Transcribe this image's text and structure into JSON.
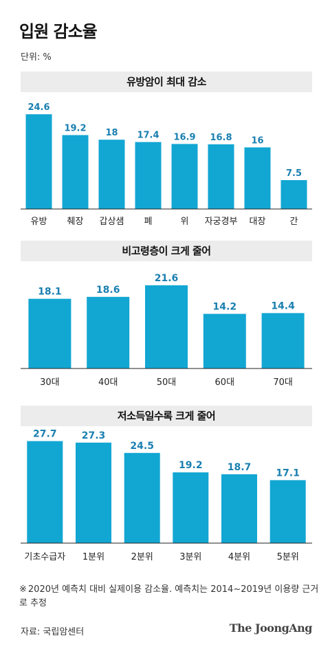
{
  "title": "입원 감소율",
  "unit_label": "단위: %",
  "colors": {
    "bar": "#12a6d3",
    "value_text": "#1a7fb0",
    "band": "#ececec",
    "axis": "#222222"
  },
  "footnote": {
    "mark": "※",
    "text": "2020년 예측치 대비 실제이용 감소율. 예측치는 2014~2019년 이용량 근거로 추정"
  },
  "source": "자료: 국립암센터",
  "brand": "The JoongAng",
  "chart_data": [
    {
      "type": "bar",
      "title": "유방암이 최대 감소",
      "categories": [
        "유방",
        "췌장",
        "갑상샘",
        "폐",
        "위",
        "자궁경부",
        "대장",
        "간"
      ],
      "values": [
        24.6,
        19.2,
        18,
        17.4,
        16.9,
        16.8,
        16,
        7.5
      ],
      "labels": [
        "24.6",
        "19.2",
        "18",
        "17.4",
        "16.9",
        "16.8",
        "16",
        "7.5"
      ],
      "ylim": [
        0,
        25
      ]
    },
    {
      "type": "bar",
      "title": "비고령층이 크게 줄어",
      "categories": [
        "30대",
        "40대",
        "50대",
        "60대",
        "70대"
      ],
      "values": [
        18.1,
        18.6,
        21.6,
        14.2,
        14.4
      ],
      "labels": [
        "18.1",
        "18.6",
        "21.6",
        "14.2",
        "14.4"
      ],
      "ylim": [
        0,
        25
      ]
    },
    {
      "type": "bar",
      "title": "저소득일수록 크게 줄어",
      "categories": [
        "기초수급자",
        "1분위",
        "2분위",
        "3분위",
        "4분위",
        "5분위"
      ],
      "values": [
        27.7,
        27.3,
        24.5,
        19.2,
        18.7,
        17.1
      ],
      "labels": [
        "27.7",
        "27.3",
        "24.5",
        "19.2",
        "18.7",
        "17.1"
      ],
      "ylim": [
        0,
        28
      ]
    }
  ]
}
